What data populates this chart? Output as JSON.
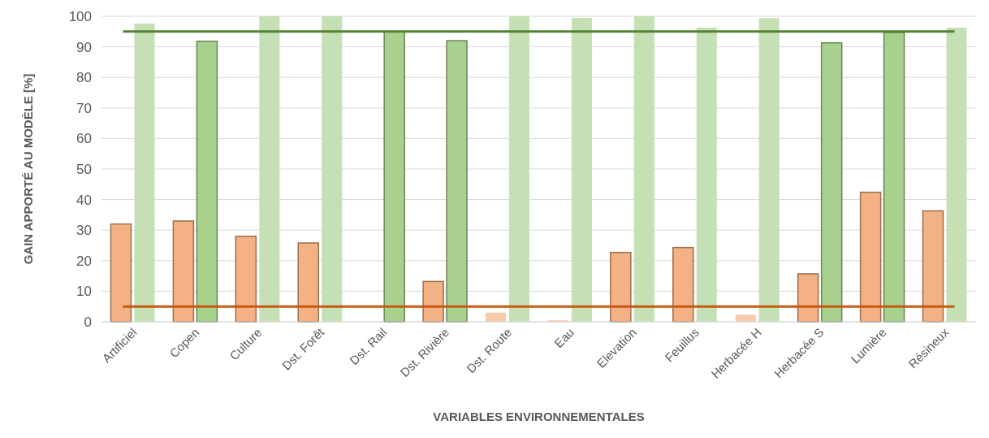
{
  "chart_data": {
    "type": "bar",
    "xlabel": "VARIABLES ENVIRONNEMENTALES",
    "ylabel": "GAIN APPORTÉ AU MODÈLE [%]",
    "categories": [
      "Artificiel",
      "Copen",
      "Culture",
      "Dst. Forêt",
      "Dst. Rail",
      "Dst. Rivière",
      "Dst. Route",
      "Eau",
      "Elevation",
      "Feuillus",
      "Herbacée H",
      "Herbacée S",
      "Lumière",
      "Résineux"
    ],
    "series": [
      {
        "color": "#f4b183",
        "values": [
          32,
          33,
          28,
          25.8,
          null,
          13.2,
          3,
          0.5,
          22.7,
          24.3,
          2.3,
          15.7,
          42.4,
          36.3
        ],
        "colors": [
          "#f4b183",
          "#f4b183",
          "#f4b183",
          "#f4b183",
          null,
          "#f4b183",
          "#f8cbad",
          "#f8cbad",
          "#f4b183",
          "#f4b183",
          "#f8cbad",
          "#f4b183",
          "#f4b183",
          "#f4b183"
        ]
      },
      {
        "color": "#a9d18e",
        "values": [
          97.6,
          91.8,
          100,
          100,
          95,
          92,
          100,
          99.5,
          100,
          96.3,
          99.4,
          91.3,
          94.7,
          96.3
        ],
        "colors": [
          "#c5e0b4",
          "#a9d18e",
          "#c5e0b4",
          "#c5e0b4",
          "#a9d18e",
          "#a9d18e",
          "#c5e0b4",
          "#c5e0b4",
          "#c5e0b4",
          "#c5e0b4",
          "#c5e0b4",
          "#a9d18e",
          "#a9d18e",
          "#c5e0b4"
        ]
      }
    ],
    "ylim": [
      0,
      100
    ],
    "yticks": [
      0,
      10,
      20,
      30,
      40,
      50,
      60,
      70,
      80,
      90,
      100
    ],
    "grid": "y",
    "ref_lines": [
      {
        "axis": "y",
        "value": 95,
        "color": "#548235"
      },
      {
        "axis": "y",
        "value": 5,
        "color": "#c55a11"
      }
    ]
  }
}
